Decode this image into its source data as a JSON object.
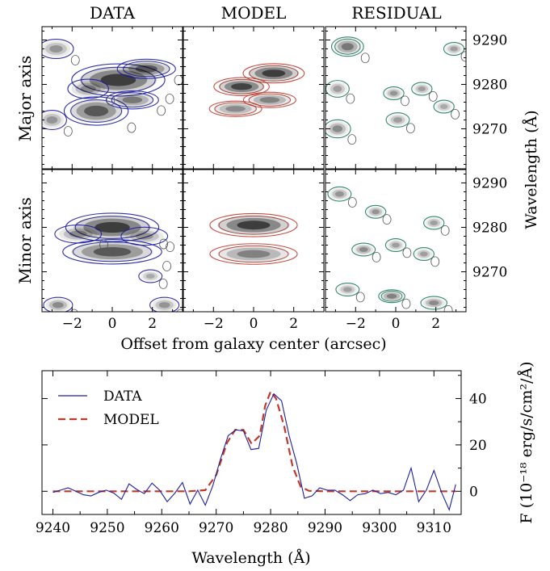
{
  "chart_data": [
    {
      "type": "heatmap",
      "panel_grid": {
        "columns": [
          "DATA",
          "MODEL",
          "RESIDUAL"
        ],
        "rows": [
          "Major axis",
          "Minor axis"
        ]
      },
      "xlabel": "Offset from galaxy center (arcsec)",
      "ylabel": "Wavelength (Å)",
      "xlim": [
        -3.5,
        3.5
      ],
      "ylim": [
        9261,
        9293
      ],
      "xticks": [
        "−2",
        "0",
        "2"
      ],
      "yticks": [
        "9270",
        "9280",
        "9290"
      ],
      "colors": {
        "data": "#1a1aa6",
        "model": "#c0392b",
        "residual": "#1a7a5a",
        "neg": "#555555"
      },
      "features": [
        {
          "row": "Major axis",
          "column": "DATA",
          "blobs": [
            {
              "x": 0.3,
              "y": 9281,
              "sx": 1.6,
              "sy": 2.5,
              "a": 1.0
            },
            {
              "x": 1.7,
              "y": 9283.5,
              "sx": 1.0,
              "sy": 1.5,
              "a": 0.8
            },
            {
              "x": -0.8,
              "y": 9274,
              "sx": 1.1,
              "sy": 2.2,
              "a": 0.8
            },
            {
              "x": 1.0,
              "y": 9276.5,
              "sx": 0.9,
              "sy": 1.4,
              "a": 0.6
            },
            {
              "x": -1.2,
              "y": 9279,
              "sx": 0.7,
              "sy": 1.5,
              "a": 0.5
            },
            {
              "x": -2.8,
              "y": 9288,
              "sx": 0.6,
              "sy": 1.5,
              "a": 0.45
            },
            {
              "x": -3.0,
              "y": 9272,
              "sx": 0.5,
              "sy": 1.5,
              "a": 0.45
            }
          ]
        },
        {
          "row": "Major axis",
          "column": "MODEL",
          "blobs": [
            {
              "x": 1.0,
              "y": 9282.5,
              "sx": 1.05,
              "sy": 1.5,
              "a": 1.0
            },
            {
              "x": -0.6,
              "y": 9279.5,
              "sx": 0.95,
              "sy": 1.4,
              "a": 0.95
            },
            {
              "x": 0.8,
              "y": 9276.5,
              "sx": 0.9,
              "sy": 1.2,
              "a": 0.55
            },
            {
              "x": -0.9,
              "y": 9274.5,
              "sx": 0.9,
              "sy": 1.2,
              "a": 0.5
            }
          ]
        },
        {
          "row": "Major axis",
          "column": "RESIDUAL",
          "blobs": [
            {
              "x": -2.4,
              "y": 9288.5,
              "sx": 0.55,
              "sy": 1.5,
              "a": 0.6
            },
            {
              "x": -2.9,
              "y": 9279,
              "sx": 0.4,
              "sy": 1.3,
              "a": 0.4
            },
            {
              "x": -2.9,
              "y": 9270,
              "sx": 0.45,
              "sy": 1.4,
              "a": 0.5
            },
            {
              "x": -0.1,
              "y": 9278,
              "sx": 0.35,
              "sy": 1.0,
              "a": 0.45
            },
            {
              "x": 1.3,
              "y": 9279,
              "sx": 0.35,
              "sy": 1.0,
              "a": 0.4
            },
            {
              "x": 0.1,
              "y": 9272,
              "sx": 0.4,
              "sy": 1.1,
              "a": 0.4
            },
            {
              "x": 2.4,
              "y": 9275,
              "sx": 0.35,
              "sy": 1.0,
              "a": 0.35
            },
            {
              "x": 2.9,
              "y": 9288,
              "sx": 0.35,
              "sy": 1.0,
              "a": 0.4
            }
          ]
        },
        {
          "row": "Minor axis",
          "column": "DATA",
          "blobs": [
            {
              "x": 0,
              "y": 9280,
              "sx": 1.6,
              "sy": 2.2,
              "a": 1.0
            },
            {
              "x": 0,
              "y": 9274.5,
              "sx": 1.7,
              "sy": 1.9,
              "a": 0.8
            },
            {
              "x": -1.7,
              "y": 9278.5,
              "sx": 0.8,
              "sy": 1.4,
              "a": 0.5
            },
            {
              "x": 1.6,
              "y": 9278,
              "sx": 0.8,
              "sy": 1.4,
              "a": 0.45
            },
            {
              "x": -2.7,
              "y": 9262.5,
              "sx": 0.5,
              "sy": 1.2,
              "a": 0.5
            },
            {
              "x": 2.6,
              "y": 9262.5,
              "sx": 0.5,
              "sy": 1.2,
              "a": 0.45
            },
            {
              "x": 1.9,
              "y": 9269,
              "sx": 0.4,
              "sy": 1.0,
              "a": 0.35
            }
          ]
        },
        {
          "row": "Minor axis",
          "column": "MODEL",
          "blobs": [
            {
              "x": 0,
              "y": 9280.5,
              "sx": 1.5,
              "sy": 1.8,
              "a": 1.0
            },
            {
              "x": 0,
              "y": 9274,
              "sx": 1.5,
              "sy": 1.6,
              "a": 0.55
            }
          ]
        },
        {
          "row": "Minor axis",
          "column": "RESIDUAL",
          "blobs": [
            {
              "x": -2.8,
              "y": 9287.5,
              "sx": 0.4,
              "sy": 1.1,
              "a": 0.45
            },
            {
              "x": -1.0,
              "y": 9283.5,
              "sx": 0.35,
              "sy": 1.0,
              "a": 0.45
            },
            {
              "x": -1.6,
              "y": 9275,
              "sx": 0.4,
              "sy": 1.0,
              "a": 0.5
            },
            {
              "x": 0.0,
              "y": 9276,
              "sx": 0.35,
              "sy": 1.0,
              "a": 0.4
            },
            {
              "x": 1.9,
              "y": 9281,
              "sx": 0.35,
              "sy": 1.0,
              "a": 0.4
            },
            {
              "x": 1.4,
              "y": 9274,
              "sx": 0.35,
              "sy": 1.0,
              "a": 0.4
            },
            {
              "x": -0.2,
              "y": 9264.5,
              "sx": 0.45,
              "sy": 1.0,
              "a": 0.55
            },
            {
              "x": 1.9,
              "y": 9263,
              "sx": 0.45,
              "sy": 1.0,
              "a": 0.5
            },
            {
              "x": -2.4,
              "y": 9266,
              "sx": 0.4,
              "sy": 1.0,
              "a": 0.4
            }
          ]
        }
      ]
    },
    {
      "type": "line",
      "xlabel": "Wavelength (Å)",
      "ylabel": "F (10⁻¹⁸ erg/s/cm²/Å)",
      "xlim": [
        9238,
        9315
      ],
      "ylim": [
        -10,
        52
      ],
      "xticks": [
        9240,
        9250,
        9260,
        9270,
        9280,
        9290,
        9300,
        9310
      ],
      "yticks": [
        0,
        20,
        40
      ],
      "legend_position": "top-left",
      "series": [
        {
          "name": "DATA",
          "style": "solid",
          "color": "#1f1f9e",
          "x": [
            9240,
            9241.4,
            9242.8,
            9244.2,
            9245.6,
            9247,
            9248.4,
            9249.8,
            9251.2,
            9252.6,
            9254,
            9255.4,
            9256.8,
            9258.2,
            9259.6,
            9261,
            9262.4,
            9263.8,
            9265.2,
            9266.6,
            9268,
            9269.4,
            9270.8,
            9272.2,
            9273.6,
            9275,
            9276.4,
            9277.8,
            9279.2,
            9280.6,
            9282,
            9283.4,
            9284.8,
            9286.2,
            9287.6,
            9289,
            9290.4,
            9291.8,
            9293.2,
            9294.6,
            9296,
            9297.4,
            9298.8,
            9300.2,
            9301.6,
            9303,
            9304.4,
            9305.8,
            9307.2,
            9308.6,
            9310,
            9311.4,
            9312.8,
            9314
          ],
          "y": [
            -0.5,
            0.5,
            1.5,
            0,
            -1.5,
            -2,
            -0.5,
            0.5,
            -0.8,
            -3.5,
            3.2,
            0.8,
            -1,
            3.5,
            0.5,
            -4.5,
            -0.8,
            3.8,
            -5.5,
            0.5,
            -6,
            2.5,
            14,
            24,
            26.5,
            26,
            18,
            18.5,
            35,
            42,
            39,
            24,
            12,
            -3,
            -2,
            1.5,
            0.5,
            0.5,
            -1.5,
            -4,
            -1.5,
            -1,
            0.5,
            -1,
            -0.5,
            -1.5,
            0.5,
            10,
            -4.5,
            0.5,
            9,
            -0.5,
            -8,
            3
          ]
        },
        {
          "name": "MODEL",
          "style": "dashed",
          "color": "#c0392b",
          "x": [
            9240,
            9265,
            9268,
            9270,
            9272,
            9273.5,
            9275,
            9276.5,
            9278,
            9279,
            9280,
            9281,
            9282.5,
            9284,
            9285.5,
            9287,
            9290,
            9314
          ],
          "y": [
            0,
            0,
            0.5,
            7,
            21,
            26.5,
            26.5,
            20.5,
            24,
            37,
            43,
            40,
            28,
            11,
            2,
            0.2,
            0,
            0
          ]
        }
      ]
    }
  ]
}
